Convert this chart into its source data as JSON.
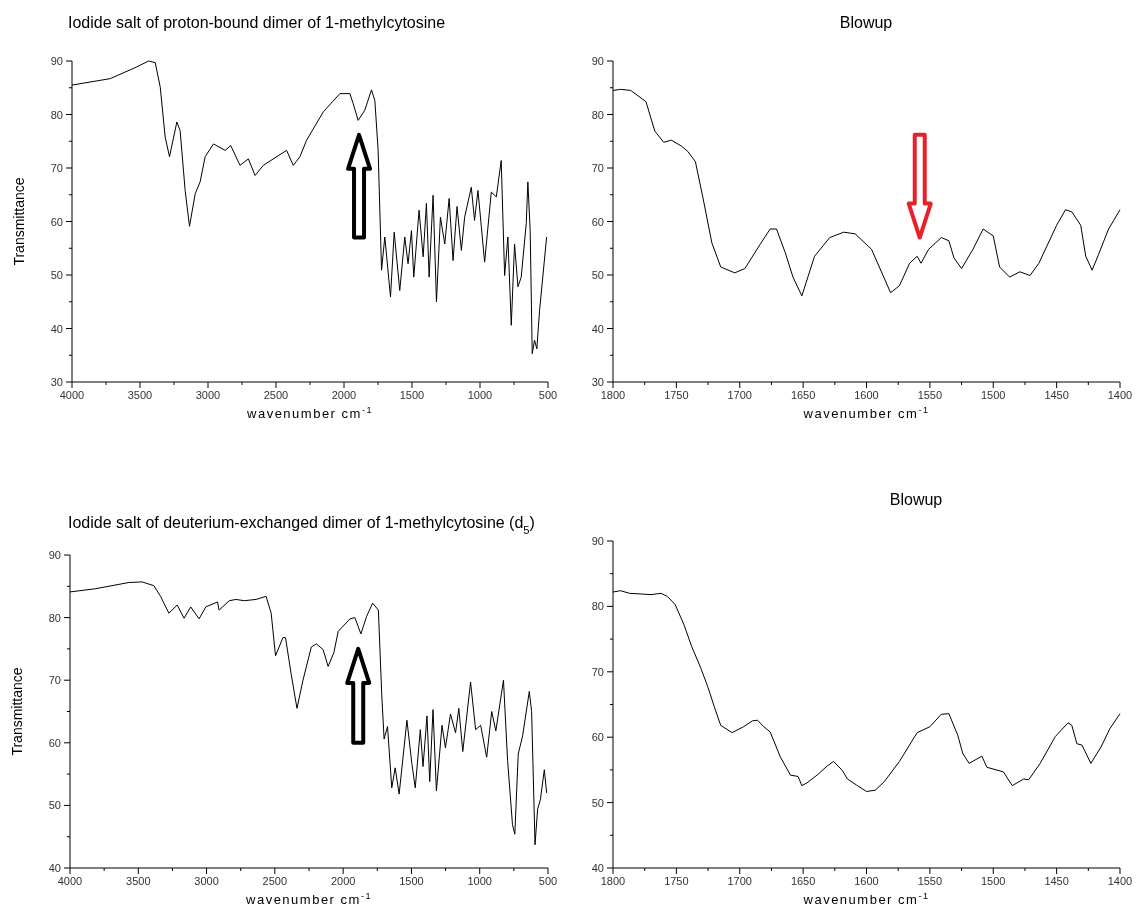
{
  "chart_data": [
    {
      "type": "line",
      "title": "Iodide salt of proton-bound dimer of 1-methylcytosine",
      "xlabel": "wavenumber cm$^{-1}$",
      "ylabel": "Transmittance",
      "xlim": [
        4000,
        500
      ],
      "ylim": [
        30,
        90
      ],
      "xticks": [
        4000,
        {
          "value": 3750,
          "label": null
        },
        3500,
        {
          "value": 3250,
          "label": null
        },
        3000,
        {
          "value": 2750,
          "label": null
        },
        2500,
        {
          "value": 2250,
          "label": null
        },
        2000,
        {
          "value": 1750,
          "label": null
        },
        1500,
        {
          "value": 1250,
          "label": null
        },
        1000,
        {
          "value": 750,
          "label": null
        },
        500
      ],
      "yticks": [
        30,
        {
          "value": 35,
          "label": null
        },
        40,
        {
          "value": 45,
          "label": null
        },
        50,
        {
          "value": 55,
          "label": null
        },
        60,
        {
          "value": 65,
          "label": null
        },
        70,
        {
          "value": 75,
          "label": null
        },
        80,
        {
          "value": 85,
          "label": null
        },
        90
      ],
      "series": [
        {
          "color": "#000000",
          "x": [
            4000,
            3719,
            3523,
            3437,
            3388,
            3351,
            3315,
            3283,
            3229,
            3205,
            3168,
            3136,
            3094,
            3058,
            3021,
            2960,
            2874,
            2833,
            2765,
            2703,
            2654,
            2593,
            2422,
            2373,
            2324,
            2275,
            2152,
            2030,
            1957,
            1932,
            1896,
            1847,
            1798,
            1773,
            1749,
            1724,
            1700,
            1658,
            1631,
            1590,
            1553,
            1529,
            1504,
            1487,
            1448,
            1418,
            1394,
            1374,
            1345,
            1320,
            1291,
            1259,
            1227,
            1198,
            1169,
            1137,
            1113,
            1064,
            1040,
            1015,
            966,
            917,
            880,
            844,
            819,
            795,
            770,
            746,
            721,
            697,
            660,
            648,
            631,
            616,
            599,
            582,
            562,
            510
          ],
          "values": [
            85.5,
            86.7,
            88.9,
            90,
            89.7,
            85.1,
            75.8,
            72.1,
            78.6,
            77,
            65.8,
            59.1,
            65.2,
            67.4,
            72.1,
            74.5,
            73.3,
            74.2,
            70.5,
            71.7,
            68.6,
            70.5,
            73.3,
            70.5,
            72.1,
            75.2,
            80.5,
            83.9,
            83.9,
            82,
            78.9,
            80.8,
            84.6,
            82.6,
            73.3,
            50.9,
            57.1,
            45.9,
            58,
            47.1,
            57.1,
            52.1,
            58.3,
            49.6,
            62.1,
            53.4,
            63.4,
            49.6,
            64.9,
            45,
            60.8,
            55.8,
            64.3,
            52.7,
            62.8,
            54.6,
            60.8,
            66.4,
            60.2,
            65.8,
            52.4,
            65.5,
            64.6,
            71.4,
            49.9,
            57.1,
            40.6,
            55.8,
            47.8,
            49.6,
            59.6,
            67.4,
            58.3,
            35.3,
            37.8,
            36.2,
            43.4,
            57.1
          ]
        }
      ]
    },
    {
      "type": "line",
      "title": "Blowup",
      "xlabel": "wavenumber cm$^{-1}$",
      "xlim": [
        1800,
        1400
      ],
      "ylim": [
        30,
        90
      ],
      "xticks": [
        1800,
        {
          "value": 1775,
          "label": null
        },
        1750,
        {
          "value": 1725,
          "label": null
        },
        1700,
        {
          "value": 1675,
          "label": null
        },
        1650,
        {
          "value": 1625,
          "label": null
        },
        1600,
        {
          "value": 1575,
          "label": null
        },
        1550,
        {
          "value": 1525,
          "label": null
        },
        1500,
        {
          "value": 1475,
          "label": null
        },
        1450,
        {
          "value": 1425,
          "label": null
        },
        1400
      ],
      "yticks": [
        30,
        {
          "value": 35,
          "label": null
        },
        40,
        {
          "value": 45,
          "label": null
        },
        50,
        {
          "value": 55,
          "label": null
        },
        60,
        {
          "value": 65,
          "label": null
        },
        70,
        {
          "value": 75,
          "label": null
        },
        80,
        {
          "value": 85,
          "label": null
        },
        90
      ],
      "series": [
        {
          "color": "#000000",
          "x": [
            1800,
            1794,
            1786,
            1774,
            1767,
            1760,
            1754,
            1746,
            1741,
            1735,
            1729,
            1722,
            1715,
            1704,
            1696,
            1684,
            1676,
            1671,
            1664,
            1658,
            1651,
            1641,
            1629,
            1618,
            1609,
            1596,
            1581,
            1574,
            1566,
            1560,
            1557,
            1551,
            1541,
            1535,
            1531,
            1525,
            1516,
            1508,
            1500,
            1495,
            1487,
            1479,
            1471,
            1464,
            1450,
            1443,
            1438,
            1431,
            1427,
            1422,
            1417,
            1409,
            1400
          ],
          "values": [
            84.5,
            84.7,
            84.5,
            82.4,
            76.9,
            74.8,
            75.2,
            74.1,
            73.1,
            71.2,
            64.4,
            56,
            51.5,
            50.4,
            51.2,
            55.7,
            58.6,
            58.6,
            54.1,
            49.6,
            46.1,
            53.5,
            57,
            58,
            57.7,
            54.8,
            46.7,
            48,
            52.2,
            53.5,
            52.2,
            54.8,
            57,
            56.4,
            53.2,
            51.2,
            54.8,
            58.6,
            57.3,
            51.5,
            49.6,
            50.6,
            49.9,
            52.2,
            59.3,
            62.2,
            61.8,
            59.3,
            53.5,
            50.9,
            53.8,
            58.6,
            62.2
          ]
        }
      ]
    },
    {
      "type": "line",
      "title": "Iodide salt of deuterium-exchanged dimer of 1-methylcytosine (d$_{5}$)",
      "xlabel": "wavenumber cm$^{-1}$",
      "ylabel": "Transmittance",
      "xlim": [
        4000,
        500
      ],
      "ylim": [
        40,
        90
      ],
      "xticks": [
        4000,
        {
          "value": 3750,
          "label": null
        },
        3500,
        {
          "value": 3250,
          "label": null
        },
        3000,
        {
          "value": 2750,
          "label": null
        },
        2500,
        {
          "value": 2250,
          "label": null
        },
        2000,
        {
          "value": 1750,
          "label": null
        },
        1500,
        {
          "value": 1250,
          "label": null
        },
        1000,
        {
          "value": 750,
          "label": null
        },
        500
      ],
      "yticks": [
        40,
        {
          "value": 45,
          "label": null
        },
        50,
        {
          "value": 55,
          "label": null
        },
        60,
        {
          "value": 65,
          "label": null
        },
        70,
        {
          "value": 75,
          "label": null
        },
        80,
        {
          "value": 85,
          "label": null
        },
        90
      ],
      "series": [
        {
          "color": "#000000",
          "x": [
            4000,
            3816,
            3570,
            3472,
            3386,
            3337,
            3276,
            3215,
            3165,
            3116,
            3055,
            3006,
            2920,
            2908,
            2834,
            2785,
            2724,
            2638,
            2564,
            2527,
            2495,
            2441,
            2422,
            2380,
            2338,
            2294,
            2233,
            2196,
            2147,
            2110,
            2068,
            2036,
            1950,
            1914,
            1870,
            1828,
            1784,
            1742,
            1717,
            1700,
            1675,
            1644,
            1619,
            1590,
            1533,
            1497,
            1472,
            1435,
            1415,
            1386,
            1366,
            1342,
            1317,
            1276,
            1251,
            1214,
            1177,
            1153,
            1124,
            1067,
            1030,
            993,
            949,
            912,
            882,
            826,
            796,
            760,
            743,
            718,
            686,
            637,
            620,
            595,
            576,
            556,
            527,
            510
          ],
          "values": [
            84.1,
            84.6,
            85.6,
            85.7,
            85.1,
            83.4,
            80.7,
            82,
            79.9,
            81.7,
            79.8,
            81.7,
            82.5,
            81.2,
            82.7,
            82.9,
            82.7,
            82.9,
            83.4,
            80.7,
            73.9,
            76.8,
            76.8,
            70.9,
            65.5,
            70,
            75.3,
            75.8,
            74.9,
            72.2,
            74.4,
            77.8,
            79.8,
            80,
            77.4,
            80.2,
            82.3,
            81.2,
            67.5,
            60.6,
            62.6,
            52.8,
            56,
            51.8,
            63.6,
            56.7,
            52.8,
            62.1,
            56.2,
            64.3,
            53.8,
            65.3,
            52.3,
            62.8,
            59.2,
            64.6,
            61.6,
            65.5,
            58.6,
            69.7,
            62.1,
            62.8,
            57.7,
            65,
            61.9,
            70,
            57.2,
            46.9,
            45.4,
            58.2,
            61.1,
            68.2,
            65,
            43.7,
            49.4,
            50.9,
            55.7,
            52
          ]
        }
      ]
    },
    {
      "type": "line",
      "title": "Blowup",
      "xlabel": "wavenumber cm$^{-1}$",
      "xlim": [
        1800,
        1400
      ],
      "ylim": [
        40,
        90
      ],
      "xticks": [
        1800,
        {
          "value": 1775,
          "label": null
        },
        1750,
        {
          "value": 1725,
          "label": null
        },
        1700,
        {
          "value": 1675,
          "label": null
        },
        1650,
        {
          "value": 1625,
          "label": null
        },
        1600,
        {
          "value": 1575,
          "label": null
        },
        1550,
        {
          "value": 1525,
          "label": null
        },
        1500,
        {
          "value": 1475,
          "label": null
        },
        1450,
        {
          "value": 1425,
          "label": null
        },
        1400
      ],
      "yticks": [
        40,
        {
          "value": 45,
          "label": null
        },
        50,
        {
          "value": 55,
          "label": null
        },
        60,
        {
          "value": 65,
          "label": null
        },
        70,
        {
          "value": 75,
          "label": null
        },
        80,
        {
          "value": 85,
          "label": null
        },
        90
      ],
      "series": [
        {
          "color": "#000000",
          "x": [
            1800,
            1794,
            1787,
            1778,
            1770,
            1762,
            1757,
            1751,
            1744,
            1738,
            1731,
            1725,
            1720,
            1715,
            1706,
            1697,
            1690,
            1686,
            1681,
            1676,
            1668,
            1660,
            1654,
            1651,
            1647,
            1639,
            1631,
            1626,
            1619,
            1615,
            1608,
            1600,
            1593,
            1586,
            1574,
            1567,
            1560,
            1550,
            1541,
            1535,
            1528,
            1524,
            1519,
            1509,
            1505,
            1492,
            1485,
            1476,
            1472,
            1463,
            1451,
            1441,
            1438,
            1434,
            1430,
            1423,
            1415,
            1408,
            1400
          ],
          "values": [
            82.2,
            82.4,
            82,
            81.9,
            81.8,
            82,
            81.5,
            80.3,
            77.2,
            73.9,
            70.7,
            67.6,
            64.6,
            61.8,
            60.7,
            61.6,
            62.5,
            62.6,
            61.6,
            60.8,
            57,
            54.2,
            54,
            52.6,
            53,
            54.2,
            55.6,
            56.3,
            54.9,
            53.6,
            52.7,
            51.7,
            51.9,
            53.2,
            56.3,
            58.5,
            60.7,
            61.6,
            63.5,
            63.6,
            60.3,
            57.5,
            56,
            57.1,
            55.4,
            54.7,
            52.6,
            53.6,
            53.5,
            56,
            60.1,
            62.2,
            61.8,
            59,
            58.8,
            56,
            58.5,
            61.3,
            63.6
          ]
        }
      ]
    }
  ]
}
